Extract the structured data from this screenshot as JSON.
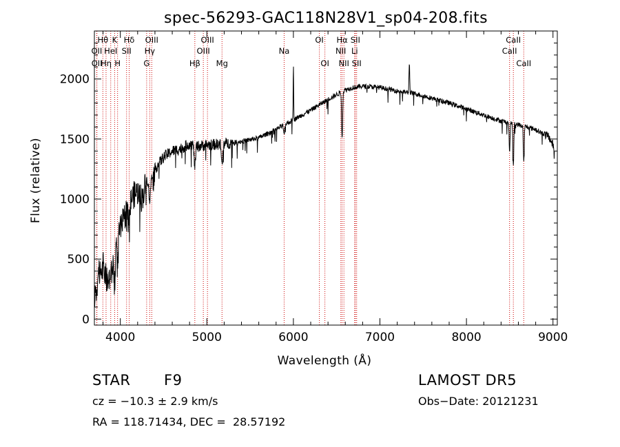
{
  "chart_data": {
    "type": "line",
    "title": "spec-56293-GAC118N28V1_sp04-208.fits",
    "xlabel": "Wavelength (Å)",
    "ylabel": "Flux (relative)",
    "xlim": [
      3700,
      9050
    ],
    "ylim": [
      -50,
      2400
    ],
    "xticks": [
      4000,
      5000,
      6000,
      7000,
      8000,
      9000
    ],
    "yticks": [
      0,
      500,
      1000,
      1500,
      2000
    ],
    "grid": false,
    "line_color": "#000000",
    "marker_color": "#cc0000",
    "spectrum_anchors": [
      [
        3700,
        120
      ],
      [
        3750,
        400
      ],
      [
        3800,
        450
      ],
      [
        3850,
        300
      ],
      [
        3900,
        380
      ],
      [
        3950,
        650
      ],
      [
        4000,
        750
      ],
      [
        4050,
        850
      ],
      [
        4100,
        980
      ],
      [
        4150,
        1030
      ],
      [
        4200,
        1060
      ],
      [
        4250,
        1000
      ],
      [
        4300,
        1150
      ],
      [
        4350,
        1200
      ],
      [
        4400,
        1250
      ],
      [
        4500,
        1350
      ],
      [
        4600,
        1400
      ],
      [
        4700,
        1420
      ],
      [
        4800,
        1460
      ],
      [
        4900,
        1440
      ],
      [
        5000,
        1450
      ],
      [
        5200,
        1460
      ],
      [
        5400,
        1480
      ],
      [
        5600,
        1510
      ],
      [
        5800,
        1580
      ],
      [
        6000,
        1660
      ],
      [
        6200,
        1740
      ],
      [
        6400,
        1830
      ],
      [
        6500,
        1870
      ],
      [
        6600,
        1910
      ],
      [
        6700,
        1930
      ],
      [
        6800,
        1940
      ],
      [
        7000,
        1930
      ],
      [
        7200,
        1900
      ],
      [
        7400,
        1880
      ],
      [
        7600,
        1840
      ],
      [
        7800,
        1800
      ],
      [
        8000,
        1750
      ],
      [
        8200,
        1700
      ],
      [
        8400,
        1650
      ],
      [
        8600,
        1620
      ],
      [
        8800,
        1580
      ],
      [
        8950,
        1520
      ],
      [
        9000,
        1450
      ],
      [
        9020,
        1400
      ]
    ],
    "absorption_dips": [
      [
        3934,
        250,
        8
      ],
      [
        3968,
        250,
        8
      ],
      [
        4102,
        150,
        10
      ],
      [
        4340,
        200,
        10
      ],
      [
        4861,
        180,
        8
      ],
      [
        5175,
        180,
        8
      ],
      [
        5893,
        90,
        6
      ],
      [
        6563,
        380,
        6
      ],
      [
        8498,
        250,
        5
      ],
      [
        8542,
        360,
        5
      ],
      [
        8662,
        300,
        5
      ]
    ],
    "emission_spikes": [
      [
        6000,
        450,
        3
      ],
      [
        7340,
        260,
        4
      ]
    ],
    "lines": [
      {
        "label": "Hθ",
        "wavelength": 3798,
        "row": 0
      },
      {
        "label": "OII",
        "wavelength": 3727,
        "row": 1
      },
      {
        "label": "OII",
        "wavelength": 3729,
        "row": 2
      },
      {
        "label": "Hη",
        "wavelength": 3835,
        "row": 2
      },
      {
        "label": "HeI",
        "wavelength": 3889,
        "row": 1
      },
      {
        "label": "K",
        "wavelength": 3934,
        "row": 0
      },
      {
        "label": "H",
        "wavelength": 3968,
        "row": 2
      },
      {
        "label": "Hδ",
        "wavelength": 4102,
        "row": 0
      },
      {
        "label": "SII",
        "wavelength": 4072,
        "row": 1
      },
      {
        "label": "OIII",
        "wavelength": 4363,
        "row": 0
      },
      {
        "label": "Hγ",
        "wavelength": 4340,
        "row": 1
      },
      {
        "label": "G",
        "wavelength": 4304,
        "row": 2
      },
      {
        "label": "Hβ",
        "wavelength": 4861,
        "row": 2
      },
      {
        "label": "OIII",
        "wavelength": 5007,
        "row": 0
      },
      {
        "label": "OIII",
        "wavelength": 4959,
        "row": 1
      },
      {
        "label": "Mg",
        "wavelength": 5175,
        "row": 2
      },
      {
        "label": "Na",
        "wavelength": 5893,
        "row": 1
      },
      {
        "label": "OI",
        "wavelength": 6300,
        "row": 0
      },
      {
        "label": "OI",
        "wavelength": 6364,
        "row": 2
      },
      {
        "label": "Hα",
        "wavelength": 6563,
        "row": 0
      },
      {
        "label": "NII",
        "wavelength": 6548,
        "row": 1
      },
      {
        "label": "NII",
        "wavelength": 6584,
        "row": 2
      },
      {
        "label": "SII",
        "wavelength": 6716,
        "row": 0
      },
      {
        "label": "Li",
        "wavelength": 6708,
        "row": 1
      },
      {
        "label": "SII",
        "wavelength": 6731,
        "row": 2
      },
      {
        "label": "CaII",
        "wavelength": 8542,
        "row": 0
      },
      {
        "label": "CaII",
        "wavelength": 8498,
        "row": 1
      },
      {
        "label": "CaII",
        "wavelength": 8662,
        "row": 2
      }
    ]
  },
  "info": {
    "object_class": "STAR",
    "subclass": "F9",
    "survey": "LAMOST DR5",
    "cz": "cz = −10.3 ± 2.9 km/s",
    "obs_date": "Obs−Date: 20121231",
    "coords": "RA = 118.71434, DEC =  28.57192"
  }
}
